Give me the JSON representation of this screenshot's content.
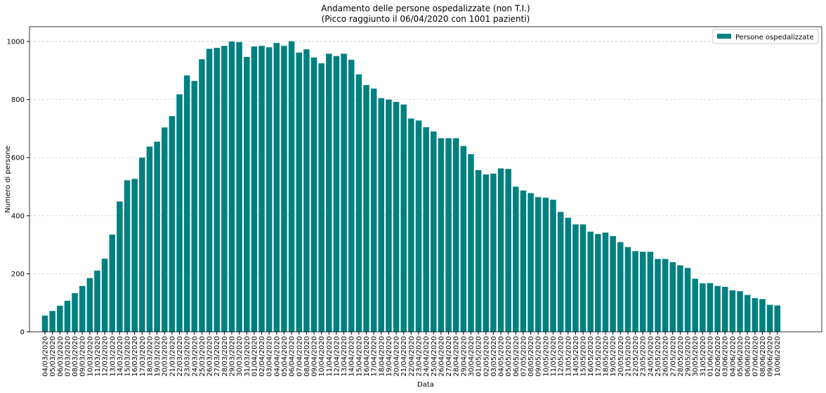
{
  "chart_data": {
    "type": "bar",
    "title": "Andamento delle persone ospedalizzate (non T.I.)",
    "subtitle": "(Picco raggiunto il 06/04/2020 con 1001 pazienti)",
    "x_label": "Data",
    "y_label": "Numero di persone",
    "legend": "upper right",
    "grid": true,
    "series": [
      {
        "name": "Persone ospedalizzate",
        "color": "#008080",
        "values": [
          56,
          72,
          90,
          107,
          133,
          158,
          185,
          211,
          252,
          335,
          449,
          522,
          527,
          600,
          638,
          655,
          704,
          743,
          818,
          883,
          864,
          939,
          975,
          978,
          985,
          1000,
          998,
          947,
          983,
          985,
          980,
          995,
          985,
          1001,
          962,
          973,
          945,
          925,
          958,
          950,
          958,
          937,
          887,
          850,
          838,
          805,
          800,
          792,
          783,
          735,
          728,
          705,
          690,
          667,
          667,
          667,
          640,
          612,
          557,
          542,
          545,
          563,
          561,
          500,
          487,
          478,
          464,
          462,
          455,
          413,
          393,
          370,
          370,
          345,
          337,
          342,
          330,
          309,
          292,
          278,
          276,
          276,
          251,
          251,
          240,
          229,
          220,
          183,
          167,
          168,
          158,
          155,
          143,
          140,
          127,
          116,
          113,
          93,
          91
        ]
      }
    ],
    "categories": [
      "04/03/2020",
      "05/03/2020",
      "06/03/2020",
      "07/03/2020",
      "08/03/2020",
      "09/03/2020",
      "10/03/2020",
      "11/03/2020",
      "12/03/2020",
      "13/03/2020",
      "14/03/2020",
      "15/03/2020",
      "16/03/2020",
      "17/03/2020",
      "18/03/2020",
      "19/03/2020",
      "20/03/2020",
      "21/03/2020",
      "22/03/2020",
      "23/03/2020",
      "24/03/2020",
      "25/03/2020",
      "26/03/2020",
      "27/03/2020",
      "28/03/2020",
      "29/03/2020",
      "30/03/2020",
      "31/03/2020",
      "01/04/2020",
      "02/04/2020",
      "03/04/2020",
      "04/04/2020",
      "05/04/2020",
      "06/04/2020",
      "07/04/2020",
      "08/04/2020",
      "09/04/2020",
      "10/04/2020",
      "11/04/2020",
      "12/04/2020",
      "13/04/2020",
      "14/04/2020",
      "15/04/2020",
      "16/04/2020",
      "17/04/2020",
      "18/04/2020",
      "19/04/2020",
      "20/04/2020",
      "21/04/2020",
      "22/04/2020",
      "23/04/2020",
      "24/04/2020",
      "25/04/2020",
      "26/04/2020",
      "27/04/2020",
      "28/04/2020",
      "29/04/2020",
      "30/04/2020",
      "01/05/2020",
      "02/05/2020",
      "03/05/2020",
      "04/05/2020",
      "05/05/2020",
      "06/05/2020",
      "07/05/2020",
      "08/05/2020",
      "09/05/2020",
      "10/05/2020",
      "11/05/2020",
      "12/05/2020",
      "13/05/2020",
      "14/05/2020",
      "15/05/2020",
      "16/05/2020",
      "17/05/2020",
      "18/05/2020",
      "19/05/2020",
      "20/05/2020",
      "21/05/2020",
      "22/05/2020",
      "23/05/2020",
      "24/05/2020",
      "25/05/2020",
      "26/05/2020",
      "27/05/2020",
      "28/05/2020",
      "29/05/2020",
      "30/05/2020",
      "31/05/2020",
      "01/06/2020",
      "02/06/2020",
      "03/06/2020",
      "04/06/2020",
      "05/06/2020",
      "06/06/2020",
      "07/06/2020",
      "08/06/2020",
      "09/06/2020",
      "10/06/2020"
    ],
    "ylim": [
      0,
      1051
    ],
    "yticks": [
      0,
      200,
      400,
      600,
      800,
      1000
    ]
  }
}
